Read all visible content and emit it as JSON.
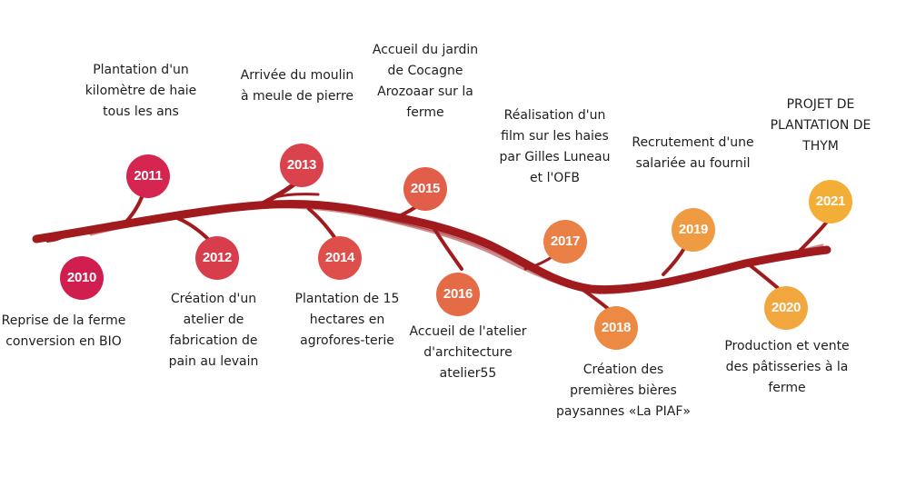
{
  "colors": {
    "branch": "#a11b1e",
    "years": {
      "2010": "#d01e4e",
      "2011": "#d42650",
      "2012": "#d83d4c",
      "2013": "#da434c",
      "2014": "#de4f4b",
      "2015": "#e35e49",
      "2016": "#e56b47",
      "2017": "#ea8046",
      "2018": "#ec8a44",
      "2019": "#ef9b41",
      "2020": "#f1a73d",
      "2021": "#f3ae38"
    }
  },
  "events": [
    {
      "year": "2010",
      "text": "Reprise de la ferme conversion en BIO"
    },
    {
      "year": "2011",
      "text": "Plantation d'un kilomètre de haie tous les ans"
    },
    {
      "year": "2012",
      "text": "Création d'un atelier de fabrication de pain au levain"
    },
    {
      "year": "2013",
      "text": "Arrivée du moulin à meule de pierre"
    },
    {
      "year": "2014",
      "text": "Plantation de 15 hectares en agrofores-terie"
    },
    {
      "year": "2015",
      "text": "Accueil du jardin de Cocagne Arozoaar sur la ferme"
    },
    {
      "year": "2016",
      "text": "Accueil de l'atelier d'architecture atelier55"
    },
    {
      "year": "2017",
      "text": "Réalisation d'un film sur les haies par Gilles Luneau et l'OFB"
    },
    {
      "year": "2018",
      "text": "Création des premières bières paysannes «La PIAF»"
    },
    {
      "year": "2019",
      "text": "Recrutement d'une salariée au fournil"
    },
    {
      "year": "2020",
      "text": "Production et vente des pâtisseries à la ferme"
    },
    {
      "year": "2021",
      "text": "PROJET DE PLANTATION DE THYM"
    }
  ]
}
